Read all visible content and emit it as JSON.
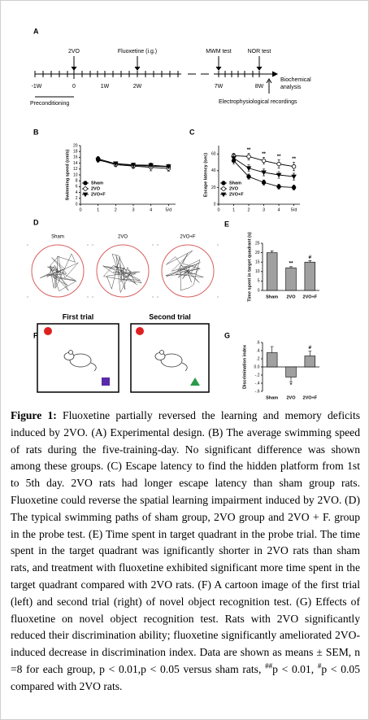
{
  "panel_a": {
    "label": "A",
    "events": [
      "2VO",
      "Fluoxetine (i.g.)",
      "MWM test",
      "NOR test"
    ],
    "times": [
      "-1W",
      "0",
      "1W",
      "2W",
      "7W",
      "8W"
    ],
    "end_label": [
      "Biochemical",
      "analysis"
    ],
    "preconditioning": "Preconditioning",
    "recordings": "Electrophysiological recordings"
  },
  "panel_d": {
    "label": "D",
    "groups": [
      "Sham",
      "2VO",
      "2VO+F"
    ]
  },
  "panel_f": {
    "label": "F",
    "trials": [
      "First trial",
      "Second trial"
    ]
  },
  "chart_data": [
    {
      "type": "line",
      "panel": "B",
      "y_label": "Swimming speed (cm/s)",
      "x": [
        1,
        2,
        3,
        4,
        5
      ],
      "xlim": [
        0,
        5.4
      ],
      "xticks": [
        0,
        1,
        2,
        3,
        4,
        {
          "value": 5,
          "label": "5/d"
        }
      ],
      "ylim": [
        0,
        20
      ],
      "yticks": [
        0,
        2,
        4,
        6,
        8,
        10,
        12,
        14,
        16,
        18,
        20
      ],
      "series": [
        {
          "name": "Sham",
          "marker": "circle",
          "color": "#000000",
          "values": [
            15.5,
            13.8,
            13.2,
            13.0,
            12.8
          ],
          "errors": [
            0.8,
            0.6,
            0.6,
            0.7,
            0.6
          ]
        },
        {
          "name": "2VO",
          "marker": "open-circle",
          "color": "#000000",
          "values": [
            15.2,
            13.5,
            13.0,
            12.6,
            12.2
          ],
          "errors": [
            0.7,
            0.7,
            0.8,
            1.2,
            0.9
          ]
        },
        {
          "name": "2VO+F",
          "marker": "triangle",
          "color": "#000000",
          "values": [
            15.0,
            13.9,
            13.4,
            13.3,
            12.9
          ],
          "errors": [
            0.6,
            0.6,
            0.7,
            0.8,
            0.7
          ]
        }
      ]
    },
    {
      "type": "line",
      "panel": "C",
      "y_label": "Escape latency (sec)",
      "x": [
        1,
        2,
        3,
        4,
        5
      ],
      "xlim": [
        0,
        5.4
      ],
      "xticks": [
        0,
        1,
        2,
        3,
        4,
        {
          "value": 5,
          "label": "5/d"
        }
      ],
      "ylim": [
        0,
        70
      ],
      "yticks": [
        0,
        20,
        40,
        60
      ],
      "series": [
        {
          "name": "Sham",
          "marker": "circle",
          "color": "#000000",
          "values": [
            52,
            33,
            26,
            21,
            20
          ],
          "errors": [
            4,
            3,
            3,
            3,
            3
          ]
        },
        {
          "name": "2VO",
          "marker": "open-circle",
          "color": "#000000",
          "values": [
            58,
            57,
            52,
            48,
            45
          ],
          "errors": [
            3,
            4,
            4,
            5,
            5
          ]
        },
        {
          "name": "2VO+F",
          "marker": "triangle",
          "color": "#000000",
          "values": [
            55,
            43,
            38,
            35,
            33
          ],
          "errors": [
            4,
            4,
            4,
            4,
            4
          ]
        }
      ],
      "annotations": [
        {
          "x": 2,
          "text": "**"
        },
        {
          "x": 3,
          "text": "**"
        },
        {
          "x": 4,
          "text": "**"
        },
        {
          "x": 5,
          "text": "**"
        }
      ]
    },
    {
      "type": "bar",
      "panel": "E",
      "y_label": "Time spent in target quadrant (s)",
      "categories": [
        "Sham",
        "2VO",
        "2VO+F"
      ],
      "values": [
        20,
        12,
        15
      ],
      "errors": [
        1.0,
        0.6,
        0.8
      ],
      "color": "#a0a0a0",
      "ylim": [
        0,
        25
      ],
      "yticks": [
        0,
        5,
        10,
        15,
        20,
        25
      ],
      "annotations": [
        {
          "category": "2VO",
          "text": "**"
        },
        {
          "category": "2VO+F",
          "text": "#"
        }
      ]
    },
    {
      "type": "bar",
      "panel": "G",
      "y_label": "Discrimination index",
      "categories": [
        "Sham",
        "2VO",
        "2VO+F"
      ],
      "values": [
        0.35,
        -0.25,
        0.27
      ],
      "errors": [
        0.15,
        0.12,
        0.12
      ],
      "color": "#a0a0a0",
      "ylim": [
        -0.6,
        0.6
      ],
      "yticks": [
        {
          "value": -0.6,
          "label": "-.6"
        },
        {
          "value": -0.4,
          "label": "-.4"
        },
        {
          "value": -0.2,
          "label": "-.2"
        },
        {
          "value": 0,
          "label": "0.0"
        },
        {
          "value": 0.2,
          "label": ".2"
        },
        {
          "value": 0.4,
          "label": ".4"
        },
        {
          "value": 0.6,
          "label": ".6"
        }
      ],
      "annotations": [
        {
          "category": "2VO",
          "text": "*"
        },
        {
          "category": "2VO+F",
          "text": "#"
        }
      ]
    }
  ],
  "caption": {
    "label": "Figure 1:",
    "text1": "Fluoxetine partially reversed the learning and memory deficits induced by 2VO. (A) Experimental design. (B) The average swimming speed of rats during the five-training-day. No significant difference was shown among these groups. (C) Escape latency to find the hidden platform from 1st to 5th day. 2VO rats had longer escape latency than sham group rats. Fluoxetine could reverse the spatial learning impairment induced by 2VO. (D) The typical swimming paths of sham group, 2VO group and 2VO + F. group in the probe test. (E) Time spent in target quadrant in the probe trial. The time spent in the target quadrant was ignificantly shorter in 2VO rats than sham rats, and treatment with fluoxetine exhibited significant more time spent in the target quadrant compared with 2VO rats. (F) A cartoon image of the first trial (left) and second trial (right) of novel object recognition test. (G) Effects of fluoxetine on novel object recognition test. Rats with 2VO significantly reduced their discrimination ability; fluoxetine significantly ameliorated 2VO-induced decrease in discrimination index. Data are shown as means ± SEM, n =8 for each group, p < 0.01,p < 0.05 versus sham rats,",
    "sup1": "##",
    "text2": "p < 0.01,",
    "sup2": "#",
    "text3": "p < 0.05 compared with 2VO rats."
  }
}
